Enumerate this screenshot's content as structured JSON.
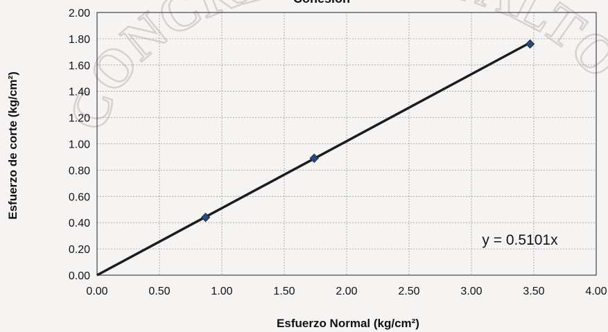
{
  "chart_data": {
    "type": "scatter",
    "title": "Cohesión",
    "xlabel": "Esfuerzo Normal (kg/cm²)",
    "ylabel": "Esfuerzo de corte (kg/cm²)",
    "xlim": [
      0,
      4
    ],
    "ylim": [
      0,
      2
    ],
    "xticks": [
      "0.00",
      "0.50",
      "1.00",
      "1.50",
      "2.00",
      "2.50",
      "3.00",
      "3.50",
      "4.00"
    ],
    "yticks": [
      "0.00",
      "0.20",
      "0.40",
      "0.60",
      "0.80",
      "1.00",
      "1.20",
      "1.40",
      "1.60",
      "1.80",
      "2.00"
    ],
    "grid": true,
    "series": [
      {
        "points": [
          {
            "x": 0.87,
            "y": 0.44
          },
          {
            "x": 1.74,
            "y": 0.89
          },
          {
            "x": 3.47,
            "y": 1.76
          }
        ],
        "marker": "diamond",
        "color": "#2a4a7a"
      }
    ],
    "trendline": {
      "slope": 0.5101,
      "intercept": 0,
      "x_range": [
        0,
        3.47
      ],
      "color": "#1c1c1c",
      "equation": "y = 0.5101x"
    },
    "stamp_text": "CONCRETO, ASFALTO E"
  }
}
